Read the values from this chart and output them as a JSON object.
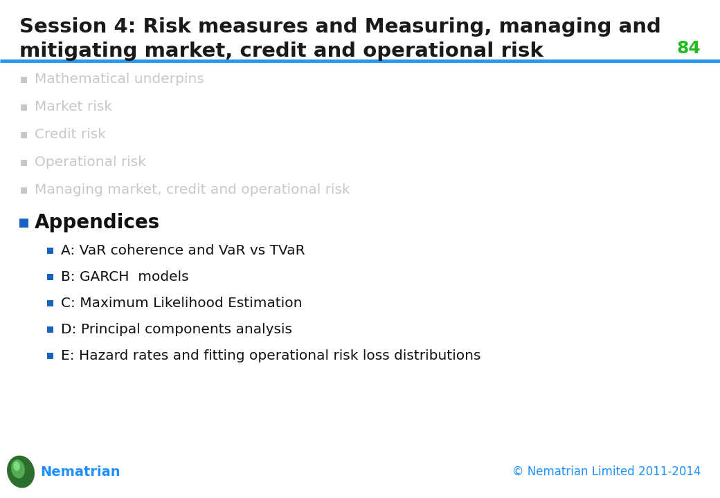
{
  "title_line1": "Session 4: Risk measures and Measuring, managing and",
  "title_line2": "mitigating market, credit and operational risk",
  "page_number": "84",
  "title_color": "#1a1a1a",
  "header_line_color": "#2196f3",
  "page_number_color": "#22bb22",
  "faded_items": [
    "Mathematical underpins",
    "Market risk",
    "Credit risk",
    "Operational risk",
    "Managing market, credit and operational risk"
  ],
  "faded_color": "#c8c8c8",
  "faded_bullet_color": "#c8c8c8",
  "active_item": "Appendices",
  "active_color": "#111111",
  "active_bullet_color": "#1565c0",
  "sub_items": [
    "A: VaR coherence and VaR vs TVaR",
    "B: GARCH  models",
    "C: Maximum Likelihood Estimation",
    "D: Principal components analysis",
    "E: Hazard rates and fitting operational risk loss distributions"
  ],
  "sub_item_color": "#111111",
  "sub_bullet_color": "#1565c0",
  "footer_left": "Nematrian",
  "footer_right": "© Nematrian Limited 2011-2014",
  "footer_color": "#1e90ff",
  "background_color": "#ffffff"
}
